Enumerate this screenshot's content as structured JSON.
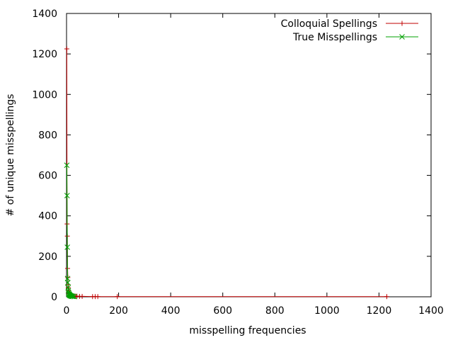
{
  "chart_data": {
    "type": "scatter",
    "title": "",
    "xlabel": "misspelling frequencies",
    "ylabel": "# of unique misspellings",
    "xlim": [
      0,
      1400
    ],
    "ylim": [
      0,
      1400
    ],
    "xticks": [
      0,
      200,
      400,
      600,
      800,
      1000,
      1200,
      1400
    ],
    "yticks": [
      0,
      200,
      400,
      600,
      800,
      1000,
      1200,
      1400
    ],
    "grid": false,
    "legend_position": "top-right",
    "series": [
      {
        "name": "Colloquial Spellings",
        "color": "#c00000",
        "marker": "plus",
        "x": [
          1,
          2,
          3,
          4,
          5,
          6,
          7,
          8,
          9,
          10,
          12,
          14,
          16,
          18,
          20,
          25,
          30,
          35,
          40,
          50,
          60,
          100,
          110,
          120,
          195,
          1230
        ],
        "y": [
          1225,
          360,
          300,
          140,
          95,
          60,
          45,
          30,
          22,
          18,
          14,
          12,
          10,
          8,
          6,
          5,
          4,
          3,
          3,
          2,
          2,
          1,
          1,
          1,
          1,
          1
        ]
      },
      {
        "name": "True Misspellings",
        "color": "#00a000",
        "marker": "cross",
        "x": [
          1,
          2,
          3,
          4,
          5,
          6,
          7,
          8,
          9,
          10,
          11,
          12,
          13,
          14,
          15,
          17,
          20,
          22,
          25,
          30
        ],
        "y": [
          650,
          500,
          245,
          90,
          70,
          45,
          30,
          20,
          15,
          12,
          10,
          8,
          7,
          6,
          5,
          4,
          3,
          2,
          2,
          1
        ]
      }
    ]
  }
}
